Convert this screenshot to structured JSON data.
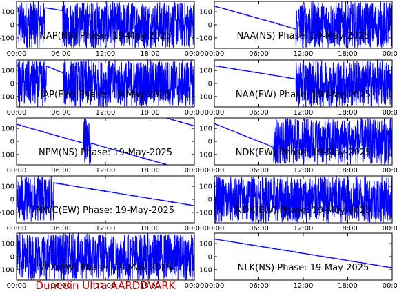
{
  "colors": {
    "trace": "#0000ff",
    "frame": "#000000",
    "footer": "#cc0000",
    "background": "#ffffff"
  },
  "footer": "Dunedin Ultra AARDDVARK",
  "chart_data": [
    {
      "type": "line",
      "title": "NAP(NS) Phase: 19-May-2025",
      "x_ticks": [
        "00:00",
        "06:00",
        "12:00",
        "18:00",
        "00:00"
      ],
      "y_ticks": [
        "100",
        "0",
        "-100"
      ],
      "ylim": [
        -180,
        180
      ],
      "xlim": [
        0,
        24
      ],
      "density": "very dense saturated phase wraps; sparse near 04-06 h",
      "dense_ranges": [
        [
          0.2,
          3.8
        ],
        [
          6.2,
          24
        ]
      ]
    },
    {
      "type": "line",
      "title": "NAA(NS) Phase: 19-May-2025",
      "x_ticks": [
        "00:00",
        "06:00",
        "12:00",
        "18:00",
        "00:00"
      ],
      "y_ticks": [
        "100",
        "0",
        "-100"
      ],
      "ylim": [
        -180,
        180
      ],
      "xlim": [
        0,
        24
      ],
      "density": "slow drift 01-11 h, dense wraps after 11 h",
      "dense_ranges": [
        [
          11,
          24
        ]
      ]
    },
    {
      "type": "line",
      "title": "JAP(EW) Phase: 19-May-2025",
      "x_ticks": [
        "00:00",
        "06:00",
        "12:00",
        "18:00",
        "00:00"
      ],
      "y_ticks": [
        "100",
        "0",
        "-100"
      ],
      "ylim": [
        -180,
        180
      ],
      "xlim": [
        0,
        24
      ],
      "density": "very dense saturated phase wraps",
      "dense_ranges": [
        [
          0.2,
          4
        ],
        [
          6.3,
          24
        ]
      ]
    },
    {
      "type": "line",
      "title": "NAA(EW) Phase: 19-May-2025",
      "x_ticks": [
        "00:00",
        "06:00",
        "12:00",
        "18:00",
        "00:00"
      ],
      "y_ticks": [
        "100",
        "0",
        "-100"
      ],
      "ylim": [
        -180,
        180
      ],
      "xlim": [
        0,
        24
      ],
      "density": "slow drift 01-11 h, dense wraps after 11 h",
      "dense_ranges": [
        [
          11,
          24
        ]
      ]
    },
    {
      "type": "line",
      "title": "NPM(NS) Phase: 19-May-2025",
      "x_ticks": [
        "00:00",
        "06:00",
        "12:00",
        "18:00",
        "00:00"
      ],
      "y_ticks": [
        "100",
        "0",
        "-100"
      ],
      "ylim": [
        -180,
        180
      ],
      "xlim": [
        0,
        24
      ],
      "density": "slow phase drift with few wraps",
      "dense_ranges": [
        [
          9,
          10
        ]
      ]
    },
    {
      "type": "line",
      "title": "NDK(EW) Phase: 19-May-2025",
      "x_ticks": [
        "00:00",
        "06:00",
        "12:00",
        "18:00",
        "00:00"
      ],
      "y_ticks": [
        "100",
        "0",
        "-100"
      ],
      "ylim": [
        -180,
        180
      ],
      "xlim": [
        0,
        24
      ],
      "density": "frequent sawtooth phase wraps",
      "dense_ranges": [
        [
          8,
          24
        ]
      ]
    },
    {
      "type": "line",
      "title": "NWC(EW) Phase: 19-May-2025",
      "x_ticks": [
        "00:00",
        "06:00",
        "12:00",
        "18:00",
        "00:00"
      ],
      "y_ticks": [
        "100",
        "0",
        "-100"
      ],
      "ylim": [
        -180,
        180
      ],
      "xlim": [
        0,
        24
      ],
      "density": "noisy early, regular sawtooth later",
      "dense_ranges": [
        [
          0,
          5
        ]
      ]
    },
    {
      "type": "line",
      "title": "NDK(EW) Phase: 19-May-2025",
      "x_ticks": [
        "00:00",
        "06:00",
        "12:00",
        "18:00",
        "00:00"
      ],
      "y_ticks": [
        "100",
        "0",
        "-100"
      ],
      "ylim": [
        -180,
        180
      ],
      "xlim": [
        0,
        24
      ],
      "density": "frequent sawtooth phase wraps",
      "dense_ranges": [
        [
          0,
          24
        ]
      ]
    },
    {
      "type": "line",
      "title": "VTX(EW) Phase: 19-May-2025",
      "x_ticks": [
        "00:00",
        "06:00",
        "12:00",
        "18:00",
        "00:00"
      ],
      "y_ticks": [
        "100",
        "0",
        "-100"
      ],
      "ylim": [
        -180,
        180
      ],
      "xlim": [
        0,
        24
      ],
      "density": "fully saturated noise",
      "dense_ranges": [
        [
          0,
          24
        ]
      ]
    },
    {
      "type": "line",
      "title": "NLK(NS) Phase: 19-May-2025",
      "x_ticks": [
        "00:00",
        "06:00",
        "12:00",
        "18:00",
        "00:00"
      ],
      "y_ticks": [
        "100",
        "0",
        "-100"
      ],
      "ylim": [
        -180,
        180
      ],
      "xlim": [
        0,
        24
      ],
      "density": "regular sawtooth wraps about every 40 minutes",
      "dense_ranges": []
    }
  ]
}
